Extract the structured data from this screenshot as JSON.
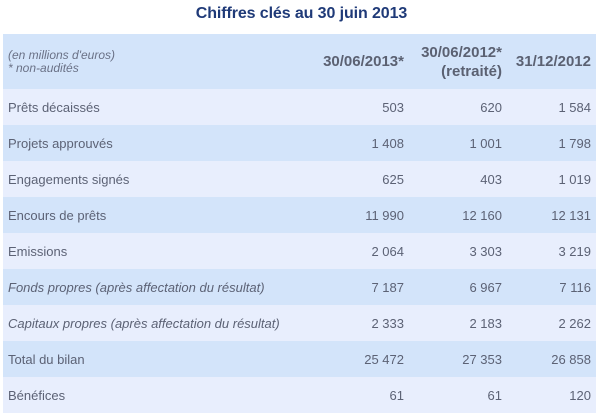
{
  "title": "Chiffres clés au 30 juin 2013",
  "header": {
    "note_line1": "(en millions d'euros)",
    "note_line2": "* non-audités",
    "columns": [
      {
        "line1": "30/06/2013*",
        "line2": ""
      },
      {
        "line1": "30/06/2012*",
        "line2": "(retraité)"
      },
      {
        "line1": "31/12/2012",
        "line2": ""
      }
    ]
  },
  "rows": [
    {
      "label": "Prêts décaissés",
      "italic": false,
      "values": [
        "503",
        "620",
        "1 584"
      ]
    },
    {
      "label": "Projets approuvés",
      "italic": false,
      "values": [
        "1 408",
        "1 001",
        "1 798"
      ]
    },
    {
      "label": "Engagements signés",
      "italic": false,
      "values": [
        "625",
        "403",
        "1 019"
      ]
    },
    {
      "label": "Encours de prêts",
      "italic": false,
      "values": [
        "11 990",
        "12 160",
        "12 131"
      ]
    },
    {
      "label": "Emissions",
      "italic": false,
      "values": [
        "2 064",
        "3 303",
        "3 219"
      ]
    },
    {
      "label": "Fonds propres (après affectation du résultat)",
      "italic": true,
      "values": [
        "7 187",
        "6 967",
        "7 116"
      ]
    },
    {
      "label": "Capitaux propres (après affectation du résultat)",
      "italic": true,
      "values": [
        "2 333",
        "2 183",
        "2 262"
      ]
    },
    {
      "label": "Total du bilan",
      "italic": false,
      "values": [
        "25 472",
        "27 353",
        "26 858"
      ]
    },
    {
      "label": "Bénéfices",
      "italic": false,
      "values": [
        "61",
        "61",
        "120"
      ]
    }
  ],
  "colors": {
    "title": "#1f3a78",
    "row_light": "#e8eefd",
    "row_dark": "#d3e4fa",
    "text": "#5c6275"
  }
}
